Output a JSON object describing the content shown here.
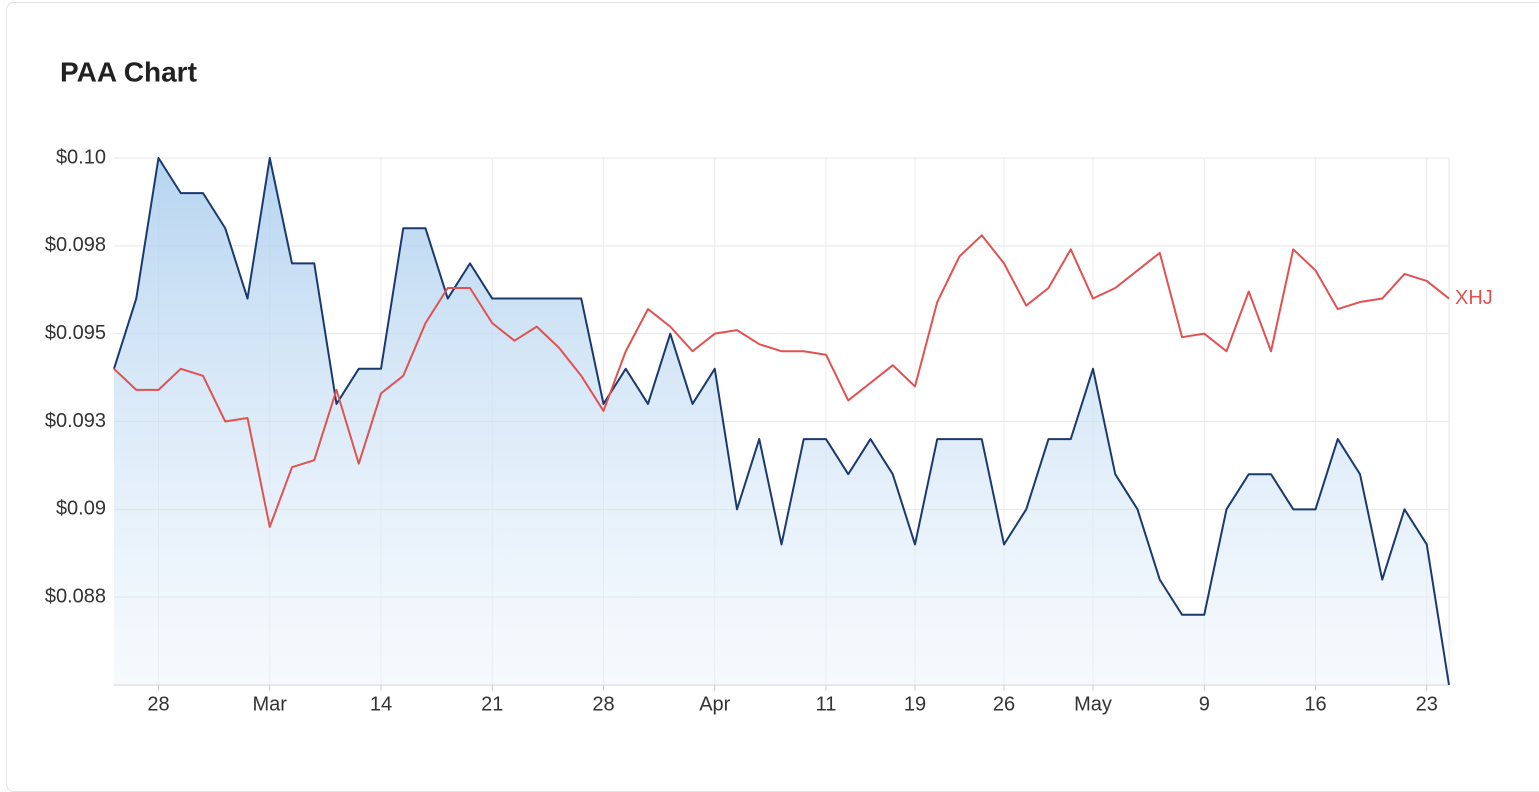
{
  "chart_data": {
    "type": "line",
    "title": "PAA Chart",
    "categories": [
      null,
      null,
      "28",
      null,
      null,
      null,
      null,
      "Mar",
      null,
      null,
      null,
      null,
      "14",
      null,
      null,
      null,
      null,
      "21",
      null,
      null,
      null,
      null,
      "28",
      null,
      null,
      null,
      null,
      "Apr",
      null,
      null,
      null,
      null,
      "11",
      null,
      null,
      null,
      "19",
      null,
      null,
      null,
      "26",
      null,
      null,
      null,
      "May",
      null,
      null,
      null,
      null,
      "9",
      null,
      null,
      null,
      null,
      "16",
      null,
      null,
      null,
      null,
      "23",
      null
    ],
    "series": [
      {
        "color": "#1a3a6e",
        "area": true,
        "values": [
          0.094,
          0.096,
          0.1,
          0.099,
          0.099,
          0.098,
          0.096,
          0.1,
          0.097,
          0.097,
          0.093,
          0.094,
          0.094,
          0.098,
          0.098,
          0.096,
          0.097,
          0.096,
          0.096,
          0.096,
          0.096,
          0.096,
          0.093,
          0.094,
          0.093,
          0.095,
          0.093,
          0.094,
          0.09,
          0.092,
          0.089,
          0.092,
          0.092,
          0.091,
          0.092,
          0.091,
          0.089,
          0.092,
          0.092,
          0.092,
          0.089,
          0.09,
          0.092,
          0.092,
          0.094,
          0.091,
          0.09,
          0.088,
          0.087,
          0.087,
          0.09,
          0.091,
          0.091,
          0.09,
          0.09,
          0.092,
          0.091,
          0.088,
          0.09,
          0.089,
          0.085
        ]
      },
      {
        "name": "XHJ",
        "color": "#e05252",
        "values": [
          0.094,
          0.0934,
          0.0934,
          0.094,
          0.0938,
          0.0925,
          0.0926,
          0.0895,
          0.0912,
          0.0914,
          0.0934,
          0.0913,
          0.0933,
          0.0938,
          0.0953,
          0.0963,
          0.0963,
          0.0953,
          0.0948,
          0.0952,
          0.0946,
          0.0938,
          0.0928,
          0.0945,
          0.0957,
          0.0952,
          0.0945,
          0.095,
          0.0951,
          0.0947,
          0.0945,
          0.0945,
          0.0944,
          0.0931,
          0.0936,
          0.0941,
          0.0935,
          0.0959,
          0.0972,
          0.0978,
          0.097,
          0.0958,
          0.0963,
          0.0974,
          0.096,
          0.0963,
          0.0968,
          0.0973,
          0.0949,
          0.095,
          0.0945,
          0.0962,
          0.0945,
          0.0974,
          0.0968,
          0.0957,
          0.0959,
          0.096,
          0.0967,
          0.0965,
          0.096
        ]
      }
    ],
    "ylim": [
      0.085,
      0.1
    ],
    "yticks": [
      {
        "value": 0.1,
        "label": "$0.10"
      },
      {
        "value": 0.0975,
        "label": "$0.098"
      },
      {
        "value": 0.095,
        "label": "$0.095"
      },
      {
        "value": 0.0925,
        "label": "$0.093"
      },
      {
        "value": 0.09,
        "label": "$0.09"
      },
      {
        "value": 0.0875,
        "label": "$0.088"
      }
    ],
    "grid": true
  }
}
